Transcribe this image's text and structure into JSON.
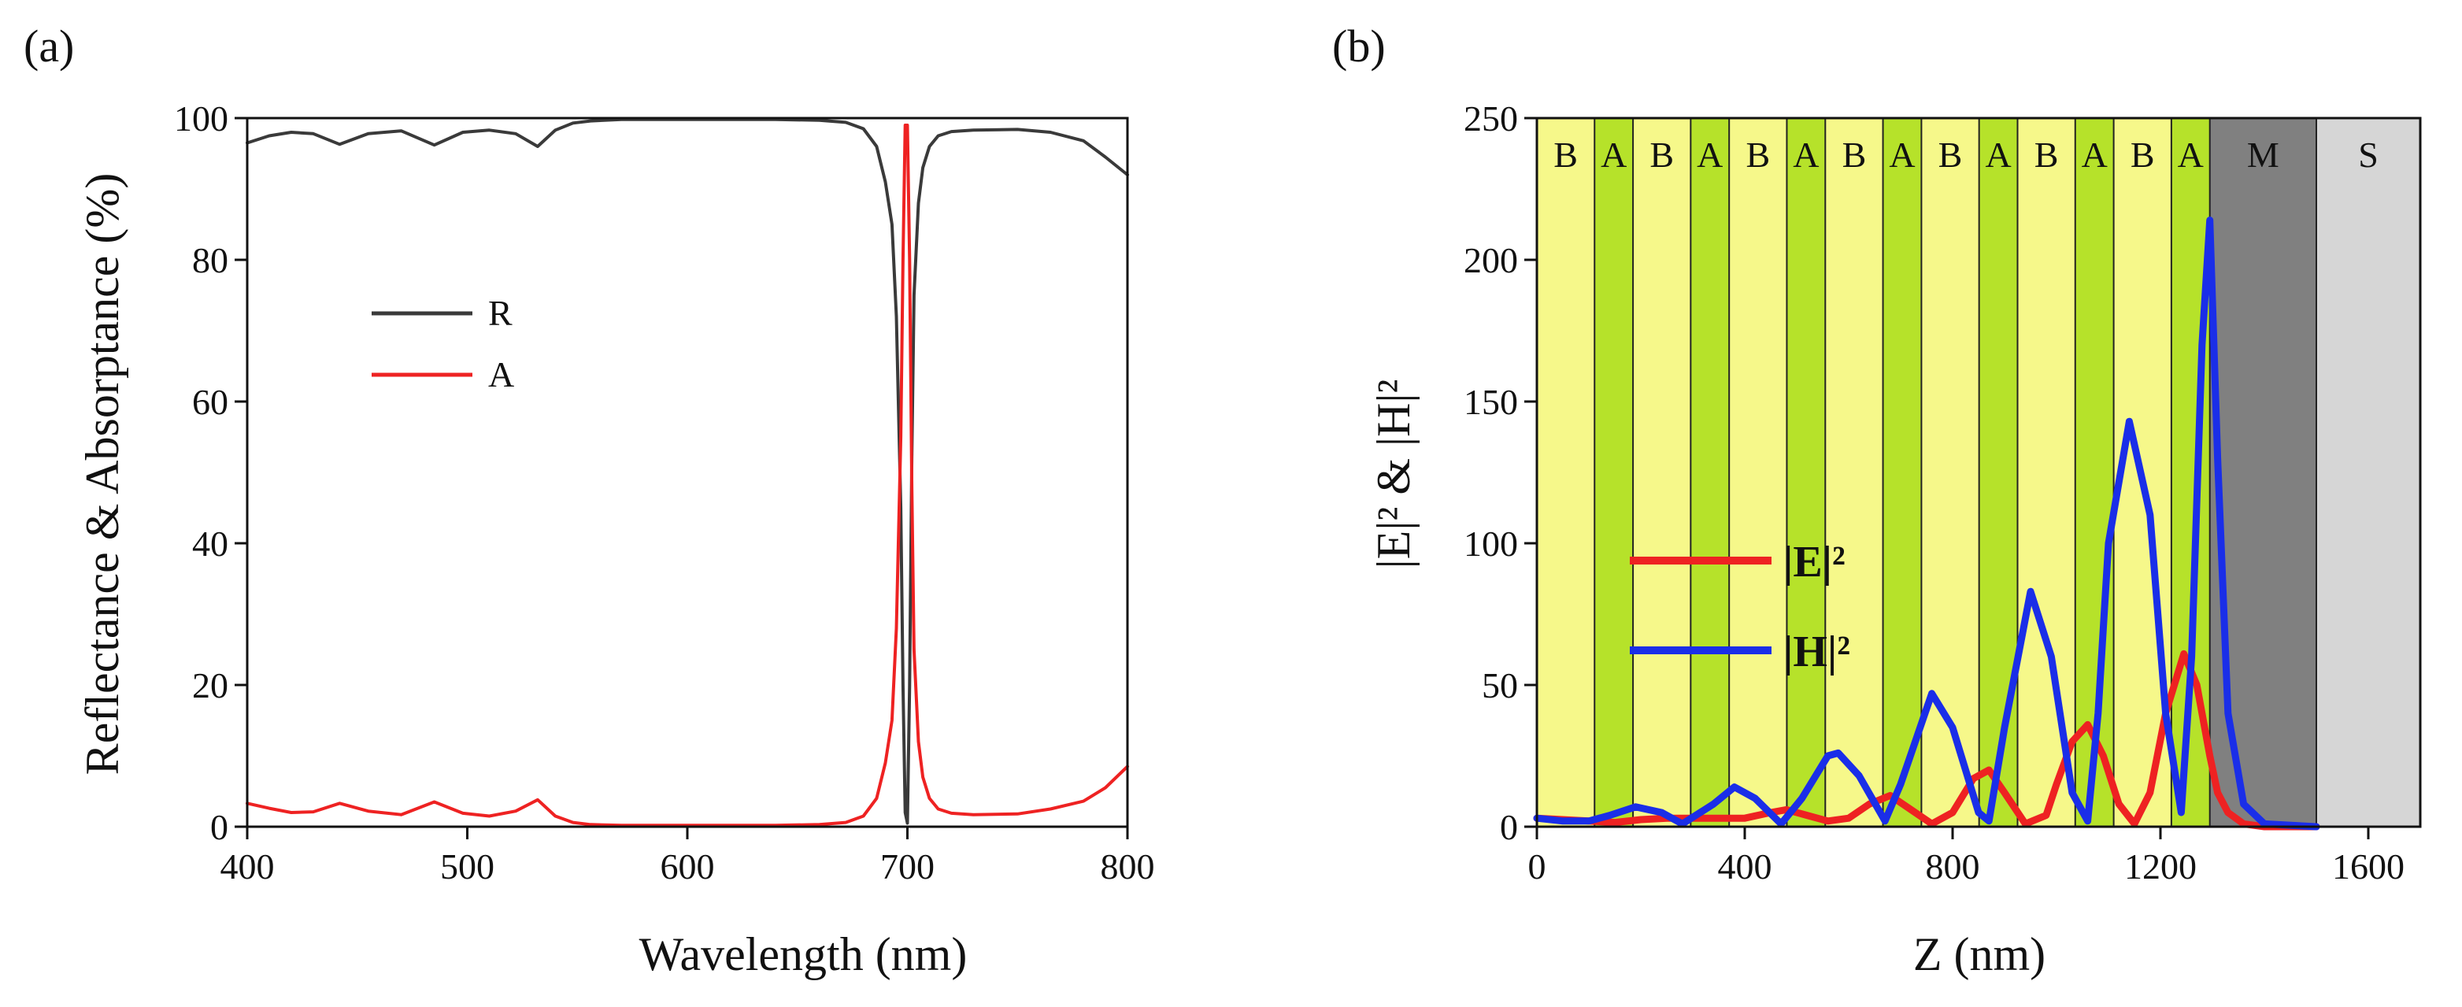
{
  "figure": {
    "panels": [
      "(a)",
      "(b)"
    ]
  },
  "chart_data": [
    {
      "type": "line",
      "panel_label": "(a)",
      "title": "",
      "xlabel": "Wavelength (nm)",
      "ylabel": "Reflectance & Absorptance (%)",
      "xlim": [
        400,
        800
      ],
      "ylim": [
        0,
        100
      ],
      "xticks": [
        "400",
        "500",
        "600",
        "700",
        "800"
      ],
      "yticks": [
        "0",
        "20",
        "40",
        "60",
        "80",
        "100"
      ],
      "legend": {
        "placement": "center-left",
        "entries": [
          "R",
          "A"
        ]
      },
      "series": [
        {
          "name": "R",
          "color": "#3a3a3a",
          "x": [
            400,
            410,
            420,
            430,
            442,
            455,
            470,
            485,
            498,
            510,
            522,
            532,
            540,
            548,
            556,
            570,
            600,
            640,
            660,
            672,
            680,
            686,
            690,
            693,
            695,
            697,
            698,
            699,
            700,
            701,
            702,
            703,
            705,
            707,
            710,
            714,
            720,
            730,
            750,
            765,
            780,
            790,
            800
          ],
          "y": [
            96.5,
            97.5,
            98,
            97.8,
            96.3,
            97.8,
            98.2,
            96.2,
            98,
            98.3,
            97.8,
            96,
            98.3,
            99.3,
            99.6,
            99.8,
            99.8,
            99.8,
            99.7,
            99.4,
            98.5,
            96,
            91,
            85,
            72,
            45,
            20,
            2,
            0.5,
            20,
            52,
            75,
            88,
            93,
            96,
            97.5,
            98.1,
            98.3,
            98.4,
            98,
            96.8,
            94.5,
            92
          ]
        },
        {
          "name": "A",
          "color": "#ee2222",
          "x": [
            400,
            410,
            420,
            430,
            442,
            455,
            470,
            485,
            498,
            510,
            522,
            532,
            540,
            548,
            556,
            570,
            600,
            640,
            660,
            672,
            680,
            686,
            690,
            693,
            695,
            697,
            698,
            699,
            700,
            701,
            702,
            703,
            705,
            707,
            710,
            714,
            720,
            730,
            750,
            765,
            780,
            790,
            800
          ],
          "y": [
            3.3,
            2.6,
            2,
            2.1,
            3.3,
            2.2,
            1.7,
            3.5,
            1.9,
            1.5,
            2.2,
            3.8,
            1.5,
            0.6,
            0.3,
            0.2,
            0.2,
            0.2,
            0.3,
            0.6,
            1.5,
            4,
            9,
            15,
            28,
            55,
            80,
            99,
            99,
            80,
            48,
            25,
            12,
            7,
            4,
            2.5,
            1.9,
            1.7,
            1.8,
            2.5,
            3.6,
            5.5,
            8.5
          ]
        }
      ]
    },
    {
      "type": "line",
      "panel_label": "(b)",
      "title": "",
      "xlabel": "Z (nm)",
      "ylabel": "|E|² & |H|²",
      "xlim": [
        0,
        1700
      ],
      "ylim": [
        0,
        250
      ],
      "xticks": [
        "0",
        "400",
        "800",
        "1200",
        "1600"
      ],
      "yticks": [
        "0",
        "50",
        "100",
        "150",
        "200",
        "250"
      ],
      "legend": {
        "placement": "center-left",
        "entries": [
          "|E|²",
          "|H|²"
        ]
      },
      "layers": [
        {
          "label": "B",
          "z0": 0,
          "z1": 111,
          "color": "#f6f88a"
        },
        {
          "label": "A",
          "z0": 111,
          "z1": 185,
          "color": "#b6e22a"
        },
        {
          "label": "B",
          "z0": 185,
          "z1": 296,
          "color": "#f6f88a"
        },
        {
          "label": "A",
          "z0": 296,
          "z1": 370,
          "color": "#b6e22a"
        },
        {
          "label": "B",
          "z0": 370,
          "z1": 481,
          "color": "#f6f88a"
        },
        {
          "label": "A",
          "z0": 481,
          "z1": 555,
          "color": "#b6e22a"
        },
        {
          "label": "B",
          "z0": 555,
          "z1": 666,
          "color": "#f6f88a"
        },
        {
          "label": "A",
          "z0": 666,
          "z1": 740,
          "color": "#b6e22a"
        },
        {
          "label": "B",
          "z0": 740,
          "z1": 851,
          "color": "#f6f88a"
        },
        {
          "label": "A",
          "z0": 851,
          "z1": 925,
          "color": "#b6e22a"
        },
        {
          "label": "B",
          "z0": 925,
          "z1": 1036,
          "color": "#f6f88a"
        },
        {
          "label": "A",
          "z0": 1036,
          "z1": 1110,
          "color": "#b6e22a"
        },
        {
          "label": "B",
          "z0": 1110,
          "z1": 1221,
          "color": "#f6f88a"
        },
        {
          "label": "A",
          "z0": 1221,
          "z1": 1295,
          "color": "#b6e22a"
        },
        {
          "label": "M",
          "z0": 1295,
          "z1": 1500,
          "color": "#808080"
        },
        {
          "label": "S",
          "z0": 1500,
          "z1": 1700,
          "color": "#d6d6d6"
        }
      ],
      "series": [
        {
          "name": "|E|²",
          "color": "#ee2222",
          "x": [
            0,
            50,
            100,
            150,
            200,
            250,
            300,
            350,
            400,
            450,
            480,
            520,
            560,
            600,
            640,
            680,
            720,
            760,
            800,
            840,
            870,
            900,
            940,
            980,
            1000,
            1030,
            1060,
            1090,
            1120,
            1150,
            1180,
            1210,
            1245,
            1270,
            1295,
            1310,
            1330,
            1360,
            1400,
            1500
          ],
          "y": [
            3,
            2.5,
            2,
            1.5,
            2.5,
            3,
            3,
            3,
            3,
            5,
            6,
            4,
            2,
            3,
            8,
            11,
            6,
            1,
            5,
            17,
            20,
            12,
            1,
            4,
            15,
            30,
            36,
            25,
            8,
            1,
            12,
            40,
            61,
            50,
            25,
            12,
            5,
            1,
            0,
            0
          ]
        },
        {
          "name": "|H|²",
          "color": "#1a2ee8",
          "x": [
            0,
            50,
            100,
            140,
            190,
            240,
            280,
            340,
            380,
            420,
            470,
            510,
            560,
            580,
            620,
            670,
            700,
            760,
            800,
            850,
            870,
            900,
            950,
            990,
            1030,
            1060,
            1080,
            1100,
            1140,
            1180,
            1210,
            1240,
            1260,
            1280,
            1295,
            1310,
            1330,
            1360,
            1400,
            1500
          ],
          "y": [
            3,
            2,
            2,
            4,
            7,
            5,
            1,
            8,
            14,
            10,
            1,
            10,
            25,
            26,
            18,
            2,
            15,
            47,
            35,
            5,
            2,
            35,
            83,
            60,
            12,
            2,
            40,
            100,
            143,
            110,
            40,
            5,
            60,
            170,
            214,
            130,
            40,
            8,
            1,
            0
          ]
        }
      ]
    }
  ]
}
